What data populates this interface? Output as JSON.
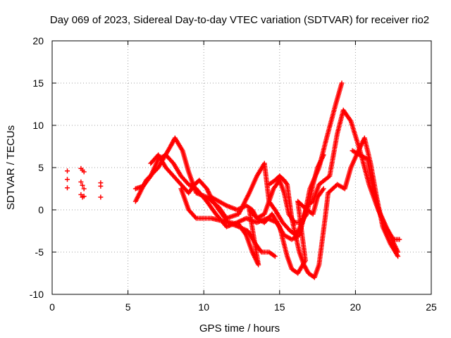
{
  "chart_data": {
    "type": "scatter",
    "title": "Day 069 of 2023, Sidereal Day-to-day VTEC variation (SDTVAR) for receiver rio2",
    "xlabel": "GPS time / hours",
    "ylabel": "SDTVAR / TECUs",
    "xlim": [
      0,
      25
    ],
    "ylim": [
      -10,
      20
    ],
    "xticks": [
      0,
      5,
      10,
      15,
      20,
      25
    ],
    "yticks": [
      -10,
      -5,
      0,
      5,
      10,
      15,
      20
    ],
    "grid": true,
    "marker": "+",
    "color": "#ff0000",
    "series": [
      {
        "name": "early-scatter",
        "points": [
          [
            1.0,
            4.6
          ],
          [
            1.0,
            3.6
          ],
          [
            1.0,
            2.6
          ],
          [
            1.9,
            4.9
          ],
          [
            2.0,
            4.7
          ],
          [
            2.1,
            4.5
          ],
          [
            1.9,
            3.3
          ],
          [
            2.0,
            2.9
          ],
          [
            2.1,
            2.5
          ],
          [
            1.9,
            1.8
          ],
          [
            2.0,
            1.5
          ],
          [
            2.1,
            1.6
          ],
          [
            3.2,
            3.2
          ],
          [
            3.2,
            2.8
          ],
          [
            3.2,
            1.5
          ]
        ]
      },
      {
        "name": "track-1",
        "points": [
          [
            5.5,
            1.0
          ],
          [
            6.2,
            3.5
          ],
          [
            7.0,
            5.0
          ],
          [
            7.8,
            7.5
          ],
          [
            8.1,
            8.5
          ],
          [
            8.6,
            7.0
          ],
          [
            9.0,
            4.5
          ],
          [
            9.5,
            2.0
          ],
          [
            10.2,
            1.5
          ],
          [
            11.0,
            0.3
          ],
          [
            11.5,
            -1.0
          ],
          [
            12.3,
            -0.5
          ],
          [
            13.0,
            2.0
          ],
          [
            13.5,
            4.0
          ],
          [
            14.0,
            5.5
          ],
          [
            14.3,
            1.0
          ],
          [
            14.7,
            0.0
          ],
          [
            15.2,
            -1.5
          ],
          [
            15.7,
            -2.5
          ],
          [
            16.1,
            -3.0
          ],
          [
            16.6,
            -1.0
          ],
          [
            17.0,
            2.5
          ],
          [
            17.6,
            5.0
          ],
          [
            18.1,
            8.5
          ],
          [
            18.7,
            12.5
          ],
          [
            19.1,
            15.0
          ]
        ]
      },
      {
        "name": "track-2",
        "points": [
          [
            5.5,
            2.5
          ],
          [
            6.0,
            2.8
          ],
          [
            6.5,
            4.0
          ],
          [
            7.0,
            6.0
          ],
          [
            7.5,
            6.5
          ],
          [
            8.0,
            5.5
          ],
          [
            8.5,
            4.0
          ],
          [
            9.0,
            3.0
          ],
          [
            9.5,
            2.5
          ],
          [
            10.2,
            1.0
          ],
          [
            10.8,
            -0.5
          ],
          [
            11.5,
            -2.0
          ],
          [
            12.2,
            -1.5
          ],
          [
            12.8,
            -1.0
          ],
          [
            13.5,
            -1.5
          ],
          [
            14.2,
            -1.0
          ],
          [
            14.8,
            -1.5
          ],
          [
            15.3,
            -3.0
          ],
          [
            15.8,
            -3.5
          ],
          [
            16.3,
            -3.0
          ],
          [
            16.8,
            0.5
          ],
          [
            17.2,
            1.0
          ],
          [
            17.6,
            3.0
          ],
          [
            18.3,
            4.0
          ],
          [
            18.8,
            9.0
          ],
          [
            19.2,
            11.8
          ],
          [
            19.7,
            10.5
          ],
          [
            20.3,
            7.0
          ],
          [
            20.9,
            3.0
          ],
          [
            21.4,
            0.5
          ],
          [
            21.9,
            -1.5
          ],
          [
            22.4,
            -3.5
          ],
          [
            22.8,
            -5.0
          ]
        ]
      },
      {
        "name": "track-3",
        "points": [
          [
            6.5,
            5.5
          ],
          [
            7.0,
            6.5
          ],
          [
            7.5,
            5.0
          ],
          [
            8.0,
            4.0
          ],
          [
            8.5,
            3.0
          ],
          [
            9.0,
            2.0
          ],
          [
            9.4,
            3.0
          ],
          [
            9.7,
            3.5
          ],
          [
            10.2,
            2.5
          ],
          [
            10.6,
            1.0
          ],
          [
            11.2,
            -0.5
          ],
          [
            11.6,
            -1.5
          ],
          [
            12.3,
            -2.0
          ],
          [
            12.9,
            -2.5
          ],
          [
            13.4,
            -4.0
          ],
          [
            13.8,
            -5.0
          ],
          [
            14.3,
            -5.0
          ],
          [
            14.7,
            -5.5
          ]
        ]
      },
      {
        "name": "track-4",
        "points": [
          [
            8.5,
            2.5
          ],
          [
            9.0,
            0.0
          ],
          [
            9.5,
            -1.0
          ],
          [
            10.5,
            -1.0
          ],
          [
            11.2,
            -1.3
          ],
          [
            12.3,
            -1.7
          ],
          [
            12.8,
            -3.0
          ],
          [
            13.2,
            -5.0
          ],
          [
            13.6,
            -6.5
          ],
          [
            13.0,
            0.0
          ],
          [
            13.5,
            -1.0
          ],
          [
            14.0,
            -1.5
          ],
          [
            14.5,
            -0.5
          ],
          [
            15.0,
            -2.0
          ],
          [
            15.5,
            -5.5
          ],
          [
            15.8,
            -7.0
          ],
          [
            16.2,
            -7.5
          ],
          [
            16.7,
            -6.0
          ],
          [
            16.2,
            1.0
          ],
          [
            16.5,
            0.5
          ],
          [
            16.8,
            0.0
          ],
          [
            17.2,
            -0.5
          ],
          [
            17.5,
            1.5
          ],
          [
            17.9,
            2.5
          ]
        ]
      },
      {
        "name": "track-5",
        "points": [
          [
            10.5,
            1.5
          ],
          [
            11.5,
            0.5
          ],
          [
            12.2,
            0.0
          ],
          [
            12.8,
            0.5
          ],
          [
            13.2,
            0.0
          ],
          [
            13.5,
            -1.0
          ],
          [
            14.0,
            -0.5
          ],
          [
            14.3,
            1.0
          ],
          [
            14.6,
            2.5
          ],
          [
            15.0,
            3.5
          ],
          [
            15.3,
            2.0
          ],
          [
            15.6,
            -0.5
          ],
          [
            16.0,
            -1.5
          ],
          [
            16.4,
            -1.5
          ],
          [
            16.8,
            -0.5
          ],
          [
            17.2,
            3.0
          ],
          [
            17.5,
            5.0
          ],
          [
            17.9,
            6.5
          ]
        ]
      },
      {
        "name": "track-6",
        "points": [
          [
            14.3,
            3.0
          ],
          [
            14.7,
            3.5
          ],
          [
            15.0,
            4.0
          ],
          [
            15.3,
            3.5
          ],
          [
            15.5,
            3.0
          ],
          [
            15.8,
            -1.0
          ],
          [
            16.3,
            -5.0
          ],
          [
            16.6,
            -6.5
          ],
          [
            16.9,
            -7.5
          ],
          [
            17.3,
            -8.0
          ],
          [
            17.6,
            -6.5
          ],
          [
            18.0,
            -1.0
          ],
          [
            18.2,
            2.0
          ],
          [
            18.8,
            3.0
          ],
          [
            19.3,
            2.5
          ],
          [
            19.7,
            5.0
          ],
          [
            20.2,
            7.0
          ],
          [
            20.6,
            8.5
          ],
          [
            21.0,
            5.5
          ],
          [
            21.4,
            1.5
          ],
          [
            21.8,
            -2.0
          ],
          [
            22.3,
            -4.0
          ],
          [
            22.8,
            -5.5
          ]
        ]
      },
      {
        "name": "track-7",
        "points": [
          [
            19.8,
            7.0
          ],
          [
            20.3,
            6.5
          ],
          [
            20.8,
            6.0
          ],
          [
            21.0,
            4.0
          ],
          [
            21.5,
            0.0
          ],
          [
            22.0,
            -2.0
          ],
          [
            22.5,
            -3.5
          ],
          [
            22.9,
            -3.5
          ]
        ]
      }
    ]
  }
}
